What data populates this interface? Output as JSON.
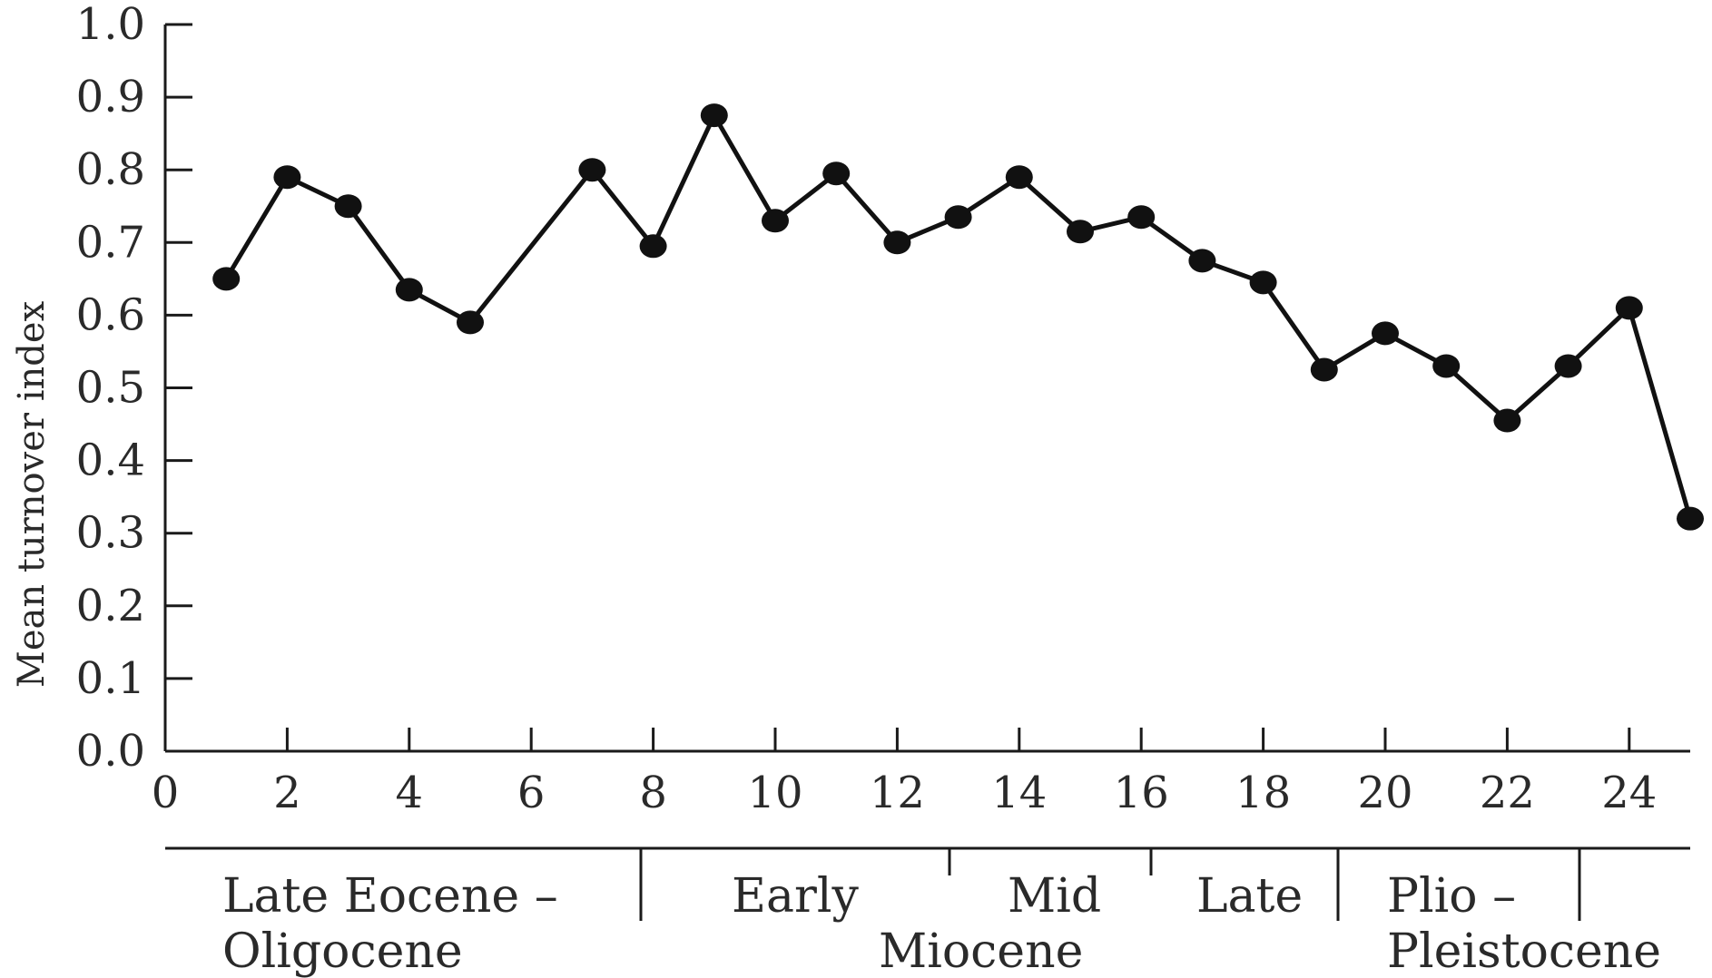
{
  "chart_data": {
    "type": "line",
    "xlabel": "",
    "ylabel": "Mean turnover index",
    "xlim": [
      0,
      25
    ],
    "ylim": [
      0.0,
      1.0
    ],
    "grid": false,
    "x_ticks": [
      "0",
      "2",
      "4",
      "6",
      "8",
      "10",
      "12",
      "14",
      "16",
      "18",
      "20",
      "22",
      "24"
    ],
    "y_ticks": [
      "0.0",
      "0.1",
      "0.2",
      "0.3",
      "0.4",
      "0.5",
      "0.6",
      "0.7",
      "0.8",
      "0.9",
      "1.0"
    ],
    "series": [
      {
        "x": [
          1,
          2,
          3,
          4,
          5,
          7,
          8,
          9,
          10,
          11,
          12,
          13,
          14,
          15,
          16,
          17,
          18,
          19,
          20,
          21,
          22,
          23,
          24,
          25
        ],
        "values": [
          0.65,
          0.79,
          0.75,
          0.635,
          0.59,
          0.8,
          0.695,
          0.875,
          0.73,
          0.795,
          0.7,
          0.735,
          0.79,
          0.715,
          0.735,
          0.675,
          0.645,
          0.525,
          0.575,
          0.53,
          0.455,
          0.53,
          0.61,
          0.32
        ]
      }
    ],
    "epochs": [
      {
        "line1": "Late Eocene –",
        "line2": "Oligocene"
      },
      {
        "line1": "Early",
        "line2": ""
      },
      {
        "line1": "Mid",
        "line2": "Miocene"
      },
      {
        "line1": "Late",
        "line2": ""
      },
      {
        "line1": "Plio –",
        "line2": "Pleistocene"
      }
    ],
    "colors": {
      "line": "#111111",
      "points": "#111111",
      "axes": "#1a1a1a"
    }
  }
}
